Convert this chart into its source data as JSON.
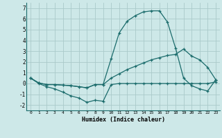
{
  "xlabel": "Humidex (Indice chaleur)",
  "xlim": [
    -0.5,
    23.5
  ],
  "ylim": [
    -2.5,
    7.5
  ],
  "xticks": [
    0,
    1,
    2,
    3,
    4,
    5,
    6,
    7,
    8,
    9,
    10,
    11,
    12,
    13,
    14,
    15,
    16,
    17,
    18,
    19,
    20,
    21,
    22,
    23
  ],
  "yticks": [
    -2,
    -1,
    0,
    1,
    2,
    3,
    4,
    5,
    6,
    7
  ],
  "bg_color": "#cde8e8",
  "grid_color": "#aacaca",
  "line_color": "#1a6b6b",
  "line1_x": [
    0,
    1,
    2,
    3,
    4,
    5,
    6,
    7,
    8,
    9,
    10,
    11,
    12,
    13,
    14,
    15,
    16,
    17,
    18,
    19,
    20,
    21,
    22,
    23
  ],
  "line1_y": [
    0.5,
    0.0,
    -0.3,
    -0.5,
    -0.8,
    -1.15,
    -1.35,
    -1.75,
    -1.55,
    -1.65,
    -0.1,
    0.0,
    0.0,
    0.0,
    0.0,
    0.0,
    0.0,
    0.0,
    0.0,
    0.0,
    0.0,
    0.0,
    0.0,
    0.15
  ],
  "line2_x": [
    0,
    1,
    2,
    3,
    4,
    5,
    6,
    7,
    8,
    9,
    10,
    11,
    12,
    13,
    14,
    15,
    16,
    17,
    18,
    19,
    20,
    21,
    22,
    23
  ],
  "line2_y": [
    0.5,
    0.05,
    -0.1,
    -0.1,
    -0.15,
    -0.2,
    -0.3,
    -0.4,
    -0.1,
    -0.1,
    0.5,
    0.9,
    1.3,
    1.6,
    1.9,
    2.2,
    2.4,
    2.6,
    2.7,
    3.2,
    2.55,
    2.2,
    1.5,
    0.35
  ],
  "line3_x": [
    0,
    1,
    2,
    3,
    4,
    5,
    6,
    7,
    8,
    9,
    10,
    11,
    12,
    13,
    14,
    15,
    16,
    17,
    18,
    19,
    20,
    21,
    22,
    23
  ],
  "line3_y": [
    0.5,
    0.05,
    -0.1,
    -0.1,
    -0.15,
    -0.2,
    -0.3,
    -0.4,
    -0.1,
    -0.1,
    2.3,
    4.7,
    5.8,
    6.3,
    6.65,
    6.75,
    6.75,
    5.7,
    3.3,
    0.5,
    -0.2,
    -0.5,
    -0.7,
    0.35
  ]
}
